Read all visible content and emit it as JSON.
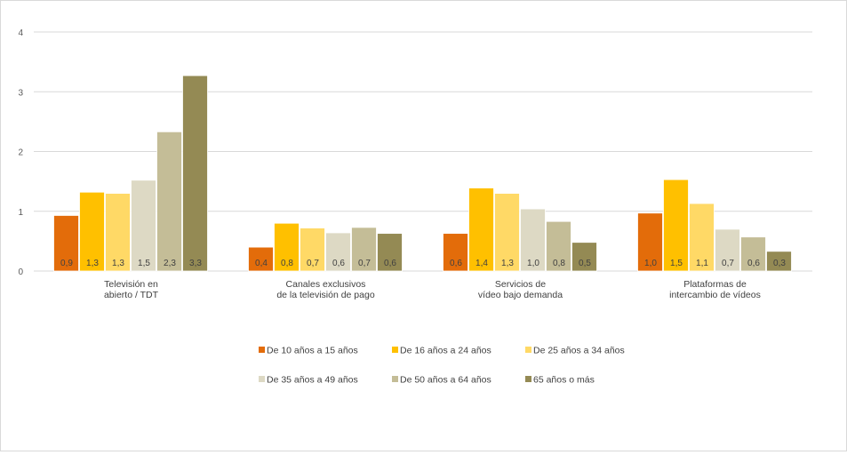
{
  "chart_data": {
    "type": "bar",
    "categories": [
      [
        "Televisión en",
        "abierto / TDT"
      ],
      [
        "Canales exclusivos",
        "de la televisión de pago"
      ],
      [
        "Servicios de",
        "vídeo bajo demanda"
      ],
      [
        "Plataformas de",
        "intercambio de vídeos"
      ]
    ],
    "ylim": [
      0,
      4
    ],
    "yticks": [
      "0",
      "1",
      "2",
      "3",
      "4"
    ],
    "grid": true,
    "legend_position": "bottom",
    "series": [
      {
        "name": "De 10 años a 15 años",
        "color": "#E36C0A",
        "values": [
          0.93,
          0.4,
          0.63,
          0.97
        ],
        "labels": [
          "0,9",
          "0,4",
          "0,6",
          "1,0"
        ]
      },
      {
        "name": "De 16 años a 24 años",
        "color": "#FFC000",
        "values": [
          1.32,
          0.8,
          1.39,
          1.53
        ],
        "labels": [
          "1,3",
          "0,8",
          "1,4",
          "1,5"
        ]
      },
      {
        "name": "De 25 años a 34 años",
        "color": "#FFD966",
        "values": [
          1.3,
          0.72,
          1.3,
          1.13
        ],
        "labels": [
          "1,3",
          "0,7",
          "1,3",
          "1,1"
        ]
      },
      {
        "name": "De 35 años a 49 años",
        "color": "#DDD9C4",
        "values": [
          1.52,
          0.64,
          1.04,
          0.7
        ],
        "labels": [
          "1,5",
          "0,6",
          "1,0",
          "0,7"
        ]
      },
      {
        "name": "De 50 años a 64 años",
        "color": "#C4BD97",
        "values": [
          2.33,
          0.73,
          0.83,
          0.57
        ],
        "labels": [
          "2,3",
          "0,7",
          "0,8",
          "0,6"
        ]
      },
      {
        "name": "65 años o más",
        "color": "#948A54",
        "values": [
          3.27,
          0.63,
          0.48,
          0.33
        ],
        "labels": [
          "3,3",
          "0,6",
          "0,5",
          "0,3"
        ]
      }
    ]
  }
}
